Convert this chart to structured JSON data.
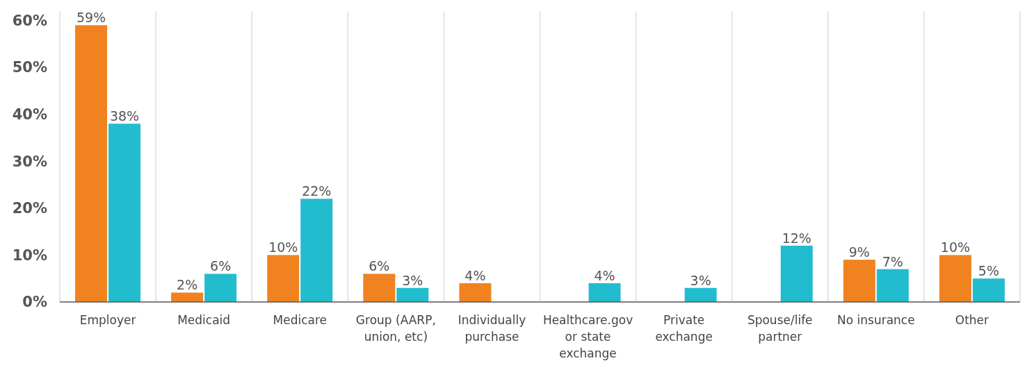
{
  "chart_data": {
    "type": "bar",
    "categories": [
      "Employer",
      "Medicaid",
      "Medicare",
      "Group (AARP, union, etc)",
      "Individually purchase",
      "Healthcare.gov or state exchange",
      "Private exchange",
      "Spouse/life partner",
      "No insurance",
      "Other"
    ],
    "series": [
      {
        "color": "#f0831f",
        "values": [
          59,
          2,
          10,
          6,
          4,
          null,
          null,
          null,
          9,
          10
        ],
        "value_labels": [
          "59%",
          "2%",
          "10%",
          "6%",
          "4%",
          null,
          null,
          null,
          "9%",
          "10%"
        ]
      },
      {
        "color": "#22bccf",
        "values": [
          38,
          6,
          22,
          3,
          null,
          4,
          3,
          12,
          7,
          5
        ],
        "value_labels": [
          "38%",
          "6%",
          "22%",
          "3%",
          null,
          "4%",
          "3%",
          "12%",
          "7%",
          "5%"
        ]
      }
    ],
    "ylim": [
      0,
      62
    ],
    "yticks": [
      {
        "value": 0,
        "label": "0%"
      },
      {
        "value": 10,
        "label": "10%"
      },
      {
        "value": 20,
        "label": "20%"
      },
      {
        "value": 30,
        "label": "30%"
      },
      {
        "value": 40,
        "label": "40%"
      },
      {
        "value": 50,
        "label": "50%"
      },
      {
        "value": 60,
        "label": "60%"
      }
    ],
    "grid": "x"
  }
}
